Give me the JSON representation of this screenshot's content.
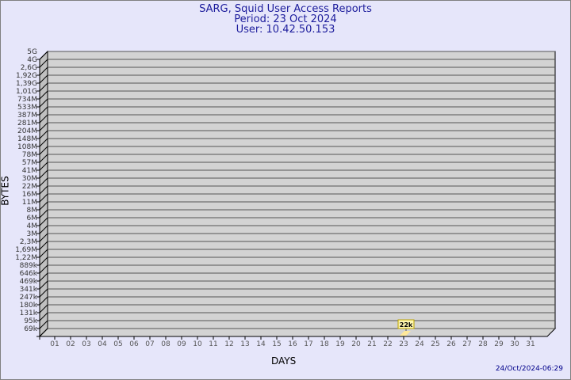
{
  "chart_data": {
    "type": "bar",
    "title": "SARG, Squid User Access Reports",
    "subtitle_period": "Period: 23 Oct 2024",
    "subtitle_user": "User: 10.42.50.153",
    "xlabel": "DAYS",
    "ylabel": "BYTES",
    "y_scale": "log",
    "y_tick_labels": [
      "5G",
      "4G",
      "2,6G",
      "1,92G",
      "1,39G",
      "1,01G",
      "734M",
      "533M",
      "387M",
      "281M",
      "204M",
      "148M",
      "108M",
      "78M",
      "57M",
      "41M",
      "30M",
      "22M",
      "16M",
      "11M",
      "8M",
      "6M",
      "4M",
      "3M",
      "2,3M",
      "1,69M",
      "1,22M",
      "889k",
      "646k",
      "469k",
      "341k",
      "247k",
      "180k",
      "131k",
      "95k",
      "69k"
    ],
    "categories": [
      "01",
      "02",
      "03",
      "04",
      "05",
      "06",
      "07",
      "08",
      "09",
      "10",
      "11",
      "12",
      "13",
      "14",
      "15",
      "16",
      "17",
      "18",
      "19",
      "20",
      "21",
      "22",
      "23",
      "24",
      "25",
      "26",
      "27",
      "28",
      "29",
      "30",
      "31"
    ],
    "values": [
      {
        "day": "23",
        "bytes": 22000,
        "label": "22k"
      }
    ],
    "grid": true,
    "colors": {
      "background": "#e6e6fa",
      "plot": "#d3d3d3",
      "bar": "#ffe89a",
      "title": "#1c1c9c"
    }
  },
  "footer": {
    "timestamp": "24/Oct/2024-06:29"
  }
}
